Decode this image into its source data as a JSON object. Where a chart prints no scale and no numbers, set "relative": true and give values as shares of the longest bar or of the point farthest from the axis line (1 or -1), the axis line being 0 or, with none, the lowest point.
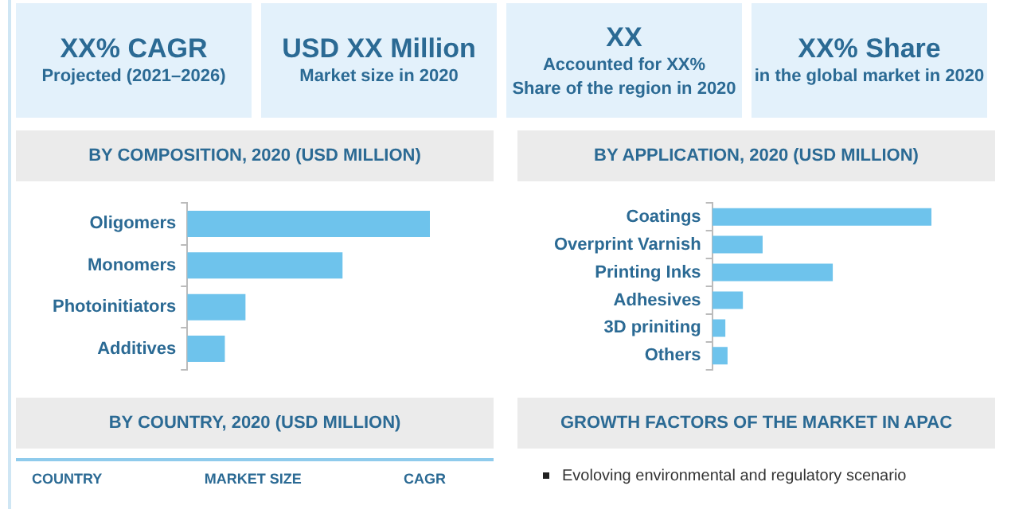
{
  "chart_data": [
    {
      "type": "other",
      "annotations": [
        "XX% CAGR\nProjected (2021–2026)",
        "USD XX Million\nMarket size in 2020",
        "XX\nAccounted  for XX%\nShare of the region in 2020",
        "XX% Share\nin the global market in 2020"
      ]
    },
    {
      "type": "bar",
      "orientation": "horizontal",
      "relative": true,
      "title": "BY COMPOSITION, 2020 (USD MILLION)",
      "categories": [
        "Oligomers",
        "Monomers",
        "Photoinitiators",
        "Additives"
      ],
      "values": [
        1,
        0.64,
        0.24,
        0.155
      ],
      "color": "#6ec3ec"
    },
    {
      "type": "bar",
      "orientation": "horizontal",
      "relative": true,
      "title": "BY APPLICATION, 2020 (USD MILLION)",
      "categories": [
        "Coatings",
        "Overprint Varnish",
        "Printing Inks",
        "Adhesives",
        "3D priniting",
        "Others"
      ],
      "values": [
        1,
        0.23,
        0.55,
        0.14,
        0.06,
        0.07
      ],
      "color": "#6ec3ec"
    },
    {
      "type": "other",
      "title": "BY COUNTRY, 2020 (USD MILLION)",
      "annotations": [
        "COUNTRY",
        "MARKET SIZE",
        "CAGR"
      ]
    },
    {
      "type": "other",
      "title": "GROWTH FACTORS OF THE MARKET IN APAC",
      "annotations": [
        "Evoloving environmental and regulatory scenario"
      ]
    }
  ]
}
